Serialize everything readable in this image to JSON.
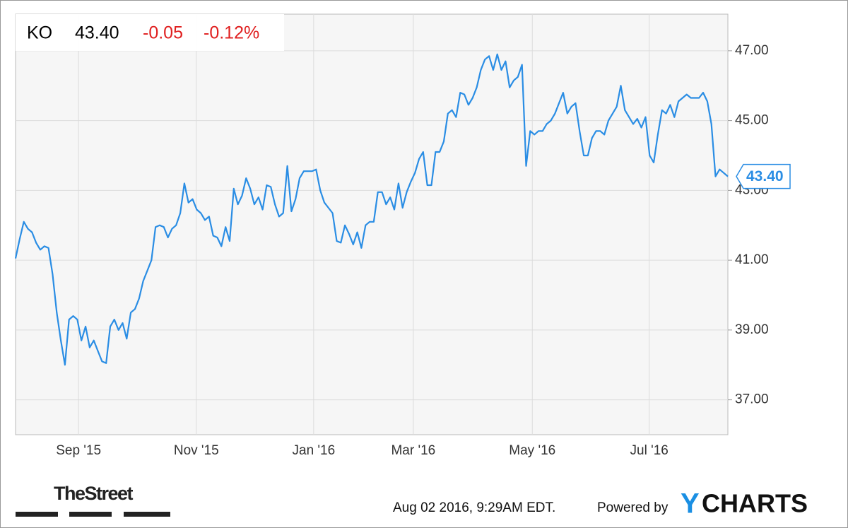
{
  "header": {
    "ticker": "KO",
    "price": "43.40",
    "change": "-0.05",
    "change_pct": "-0.12%"
  },
  "chart_data": {
    "type": "line",
    "series": [
      {
        "name": "KO",
        "color": "#2a8de4",
        "values": [
          41.05,
          41.6,
          42.1,
          41.9,
          41.8,
          41.5,
          41.3,
          41.4,
          41.35,
          40.6,
          39.5,
          38.7,
          38.0,
          39.3,
          39.4,
          39.3,
          38.7,
          39.1,
          38.5,
          38.7,
          38.4,
          38.1,
          38.05,
          39.1,
          39.3,
          39.0,
          39.2,
          38.75,
          39.5,
          39.6,
          39.9,
          40.4,
          40.7,
          41.0,
          41.95,
          42.0,
          41.95,
          41.65,
          41.9,
          42.0,
          42.35,
          43.2,
          42.65,
          42.75,
          42.45,
          42.35,
          42.15,
          42.25,
          41.7,
          41.65,
          41.4,
          41.95,
          41.55,
          43.05,
          42.6,
          42.85,
          43.35,
          43.05,
          42.6,
          42.8,
          42.45,
          43.15,
          43.1,
          42.6,
          42.25,
          42.35,
          43.7,
          42.4,
          42.75,
          43.35,
          43.55,
          43.55,
          43.55,
          43.6,
          43.0,
          42.65,
          42.5,
          42.35,
          41.55,
          41.5,
          42.0,
          41.75,
          41.45,
          41.8,
          41.35,
          42.0,
          42.1,
          42.1,
          42.95,
          42.95,
          42.6,
          42.8,
          42.45,
          43.2,
          42.5,
          42.95,
          43.25,
          43.5,
          43.9,
          44.1,
          43.15,
          43.15,
          44.1,
          44.1,
          44.4,
          45.2,
          45.3,
          45.1,
          45.8,
          45.75,
          45.45,
          45.65,
          45.95,
          46.45,
          46.75,
          46.85,
          46.45,
          46.9,
          46.45,
          46.7,
          45.95,
          46.15,
          46.25,
          46.6,
          43.7,
          44.7,
          44.6,
          44.7,
          44.7,
          44.9,
          45.0,
          45.2,
          45.5,
          45.8,
          45.2,
          45.4,
          45.5,
          44.7,
          44.0,
          44.0,
          44.5,
          44.7,
          44.7,
          44.6,
          45.0,
          45.2,
          45.4,
          46.0,
          45.3,
          45.1,
          44.9,
          45.05,
          44.8,
          45.1,
          44.0,
          43.8,
          44.6,
          45.3,
          45.2,
          45.45,
          45.1,
          45.55,
          45.65,
          45.75,
          45.65,
          45.65,
          45.65,
          45.8,
          45.55,
          44.9,
          43.4,
          43.6,
          43.5,
          43.4
        ]
      }
    ],
    "xlim": [
      0,
      173
    ],
    "xticks": [
      {
        "value": 15.3,
        "label": "Sep '15"
      },
      {
        "value": 43.9,
        "label": "Nov '15"
      },
      {
        "value": 72.4,
        "label": "Jan '16"
      },
      {
        "value": 96.6,
        "label": "Mar '16"
      },
      {
        "value": 125.5,
        "label": "May '16"
      },
      {
        "value": 153.9,
        "label": "Jul '16"
      }
    ],
    "ylim": [
      36.0,
      48.05
    ],
    "yticks": [
      {
        "value": 37,
        "label": "37.00"
      },
      {
        "value": 39,
        "label": "39.00"
      },
      {
        "value": 41,
        "label": "41.00"
      },
      {
        "value": 43,
        "label": "43.00"
      },
      {
        "value": 45,
        "label": "45.00"
      },
      {
        "value": 47,
        "label": "47.00"
      }
    ],
    "grid": true
  },
  "footer": {
    "source_logo": "TheStreet",
    "timestamp": "Aug 02 2016, 9:29AM EDT.",
    "powered_by": "Powered by",
    "brand_y": "Y",
    "brand_rest": "CHARTS"
  }
}
